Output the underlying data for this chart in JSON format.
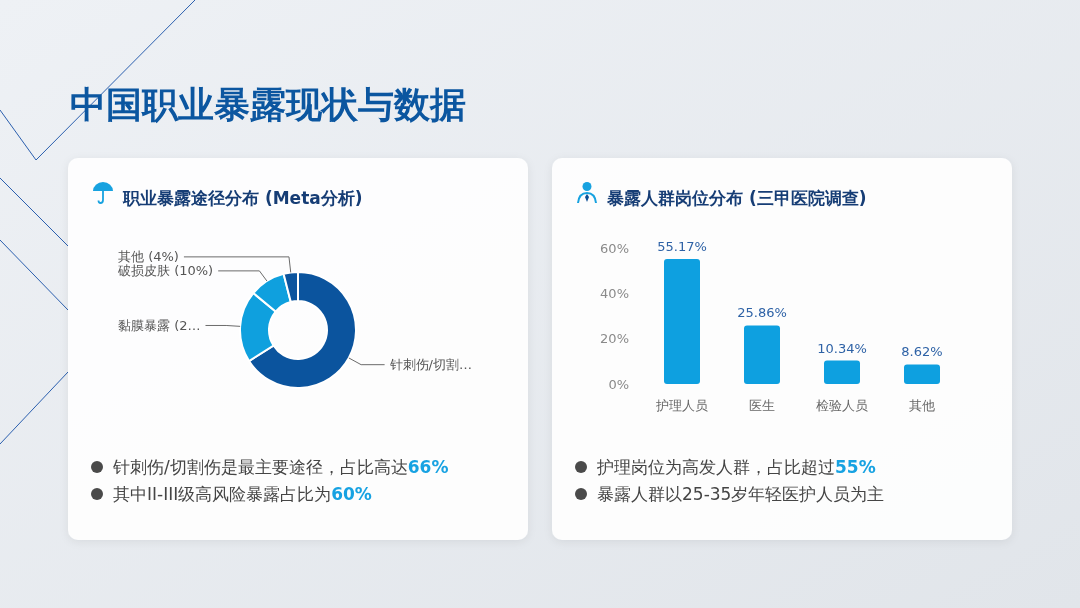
{
  "chart_data": [
    {
      "type": "donut",
      "title": "中国职业暴露现状与数据",
      "subtitle": "职业暴露途径分布 (Meta分析)",
      "categories": [
        "针刺伤/切割…",
        "黏膜暴露 (2…",
        "破损皮肤 (10%)",
        "其他 (4%)"
      ],
      "values": [
        66,
        20,
        10,
        4
      ],
      "colors": [
        "#0b549e",
        "#0fa0de",
        "#0fa0de",
        "#0b549e"
      ],
      "annotations": [
        "针刺伤/切割伤是最主要途径，占比高达66%",
        "其中II-III级高风险暴露占比为60%"
      ]
    },
    {
      "type": "bar",
      "title": "暴露人群岗位分布 (三甲医院调查)",
      "categories": [
        "护理人员",
        "医生",
        "检验人员",
        "其他"
      ],
      "values": [
        55.17,
        25.86,
        10.34,
        8.62
      ],
      "color": "#0ea0e0",
      "value_labels": [
        "55.17%",
        "25.86%",
        "10.34%",
        "8.62%"
      ],
      "ylim": [
        0,
        60
      ],
      "yticks": [
        {
          "value": 0,
          "label": "0%"
        },
        {
          "value": 20,
          "label": "20%"
        },
        {
          "value": 40,
          "label": "40%"
        },
        {
          "value": 60,
          "label": "60%"
        }
      ],
      "annotations": [
        "护理岗位为高发人群，占比超过55%",
        "暴露人群以25-35岁年轻医护人员为主"
      ]
    }
  ]
}
